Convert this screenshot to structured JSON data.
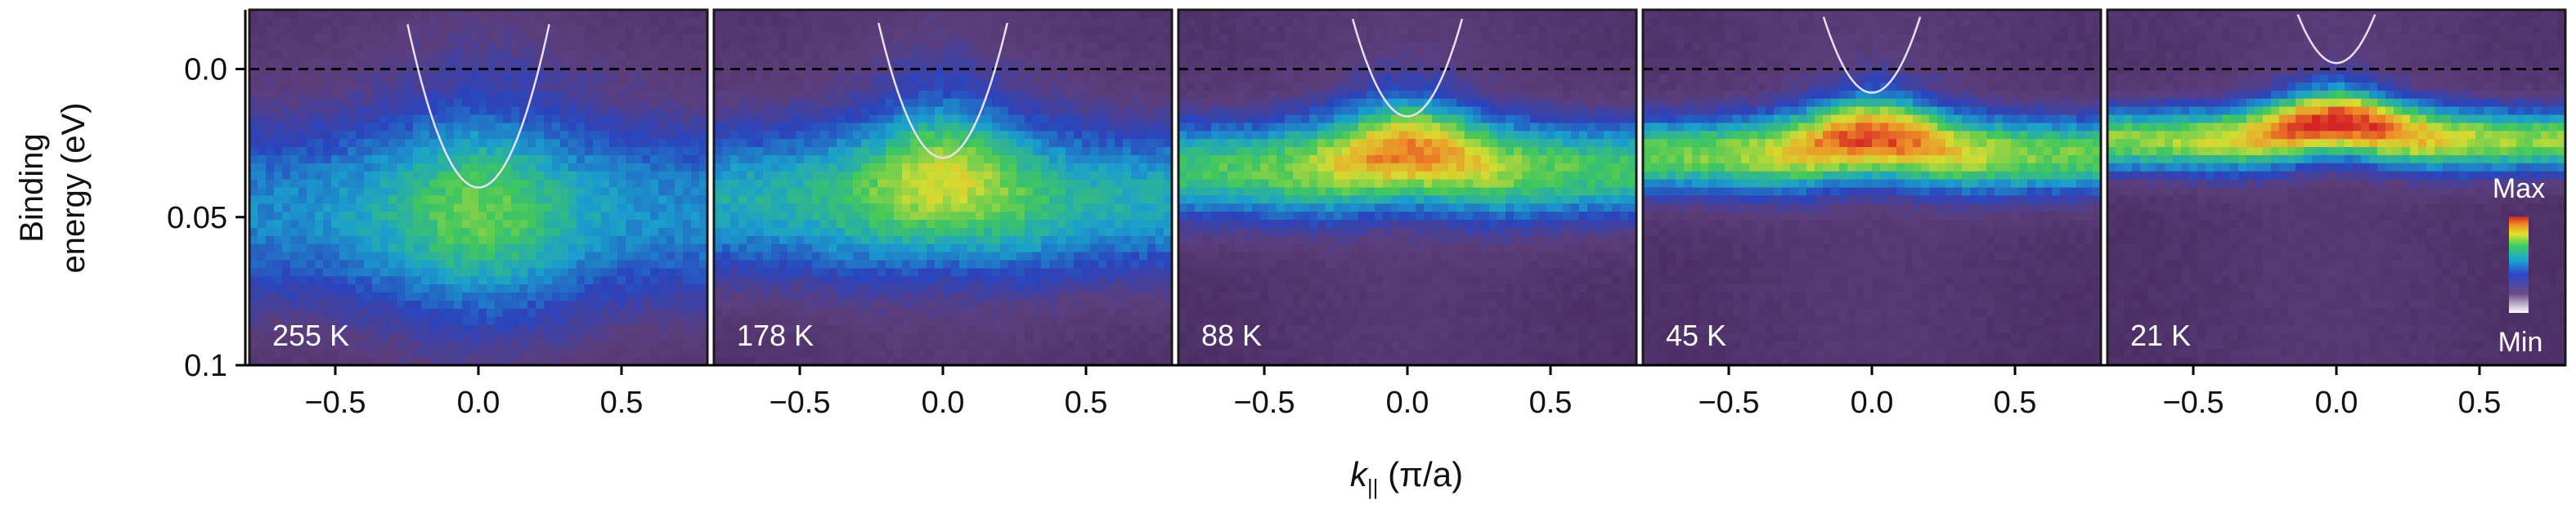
{
  "chart_data": {
    "type": "heatmap",
    "ylabel_line1": "Binding",
    "ylabel_line2": "energy (eV)",
    "xlabel_main": "k",
    "xlabel_sub": "||",
    "xlabel_unit": " (π/a)",
    "xlim": [
      -0.8,
      0.8
    ],
    "ylim": [
      -0.02,
      0.1
    ],
    "y_inverted": true,
    "x_ticks": [
      -0.5,
      0.0,
      0.5
    ],
    "x_tick_labels": [
      "−0.5",
      "0.0",
      "0.5"
    ],
    "y_ticks": [
      0.0,
      0.05,
      0.1
    ],
    "y_tick_labels": [
      "0.0",
      "0.05",
      "0.1"
    ],
    "fermi_level": 0.0,
    "colorbar": {
      "max_label": "Max",
      "min_label": "Min",
      "colors": [
        "#3a2048",
        "#5a3c78",
        "#2c47c8",
        "#18a6d6",
        "#3fcf5c",
        "#e2e22c",
        "#f08a22",
        "#d52020"
      ]
    },
    "panels": [
      {
        "label": "255 K",
        "band_center": 0.048,
        "band_width": 0.028,
        "band_dip": 0.0,
        "peak_intensity": 0.62,
        "parabola_min": 0.04,
        "parabola_curvature": 0.9
      },
      {
        "label": "178 K",
        "band_center": 0.044,
        "band_width": 0.022,
        "band_dip": 0.006,
        "peak_intensity": 0.72,
        "parabola_min": 0.03,
        "parabola_curvature": 0.9
      },
      {
        "label": "88 K",
        "band_center": 0.034,
        "band_width": 0.014,
        "band_dip": 0.006,
        "peak_intensity": 0.86,
        "parabola_min": 0.016,
        "parabola_curvature": 0.9
      },
      {
        "label": "45 K",
        "band_center": 0.029,
        "band_width": 0.011,
        "band_dip": 0.006,
        "peak_intensity": 0.92,
        "parabola_min": 0.008,
        "parabola_curvature": 0.9
      },
      {
        "label": "21 K",
        "band_center": 0.024,
        "band_width": 0.009,
        "band_dip": 0.006,
        "peak_intensity": 0.96,
        "parabola_min": -0.002,
        "parabola_curvature": 0.9
      }
    ]
  }
}
